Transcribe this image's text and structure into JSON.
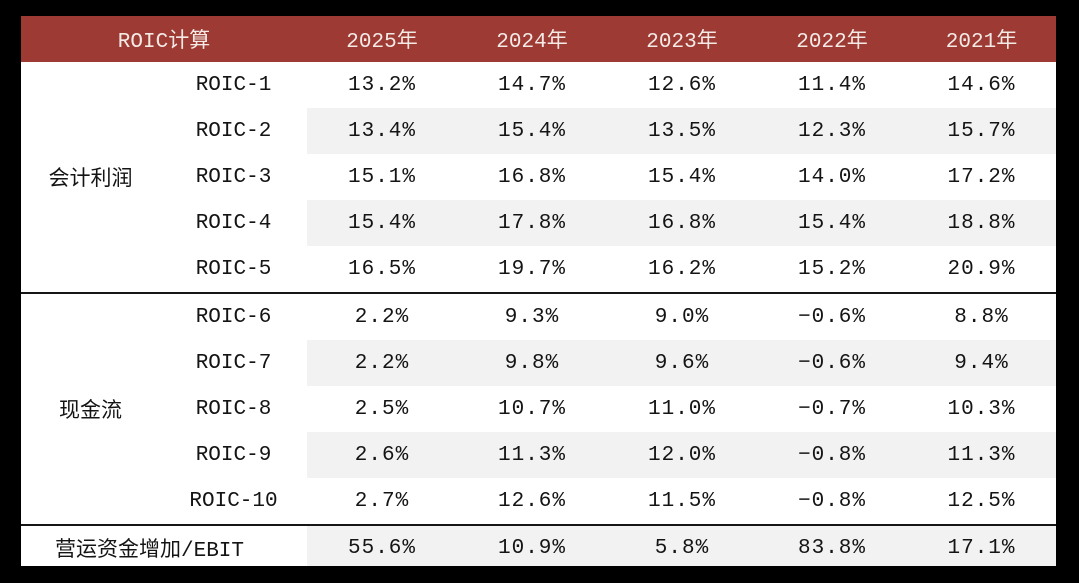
{
  "colors": {
    "page_background": "#000000",
    "card_background": "#ffffff",
    "header_background": "#9e3a34",
    "header_text": "#f3eae6",
    "body_text": "#141414",
    "stripe": "#f2f2f2",
    "separator_line": "#161616"
  },
  "chart_data": {
    "type": "table",
    "title": "ROIC计算",
    "year_columns": [
      "2025年",
      "2024年",
      "2023年",
      "2022年",
      "2021年"
    ],
    "groups": [
      {
        "label": "会计利润",
        "rows": [
          {
            "name": "ROIC-1",
            "values": [
              "13.2%",
              "14.7%",
              "12.6%",
              "11.4%",
              "14.6%"
            ]
          },
          {
            "name": "ROIC-2",
            "values": [
              "13.4%",
              "15.4%",
              "13.5%",
              "12.3%",
              "15.7%"
            ]
          },
          {
            "name": "ROIC-3",
            "values": [
              "15.1%",
              "16.8%",
              "15.4%",
              "14.0%",
              "17.2%"
            ]
          },
          {
            "name": "ROIC-4",
            "values": [
              "15.4%",
              "17.8%",
              "16.8%",
              "15.4%",
              "18.8%"
            ]
          },
          {
            "name": "ROIC-5",
            "values": [
              "16.5%",
              "19.7%",
              "16.2%",
              "15.2%",
              "20.9%"
            ]
          }
        ]
      },
      {
        "label": "现金流",
        "rows": [
          {
            "name": "ROIC-6",
            "values": [
              "2.2%",
              "9.3%",
              "9.0%",
              "−0.6%",
              "8.8%"
            ]
          },
          {
            "name": "ROIC-7",
            "values": [
              "2.2%",
              "9.8%",
              "9.6%",
              "−0.6%",
              "9.4%"
            ]
          },
          {
            "name": "ROIC-8",
            "values": [
              "2.5%",
              "10.7%",
              "11.0%",
              "−0.7%",
              "10.3%"
            ]
          },
          {
            "name": "ROIC-9",
            "values": [
              "2.6%",
              "11.3%",
              "12.0%",
              "−0.8%",
              "11.3%"
            ]
          },
          {
            "name": "ROIC-10",
            "values": [
              "2.7%",
              "12.6%",
              "11.5%",
              "−0.8%",
              "12.5%"
            ]
          }
        ]
      }
    ],
    "footer": {
      "label": "营运资金增加/EBIT",
      "values": [
        "55.6%",
        "10.9%",
        "5.8%",
        "83.8%",
        "17.1%"
      ]
    },
    "layout": {
      "striped_rows": "alternating, data columns only",
      "group_separator_lines": true,
      "legend": "none",
      "grid": "none"
    }
  }
}
